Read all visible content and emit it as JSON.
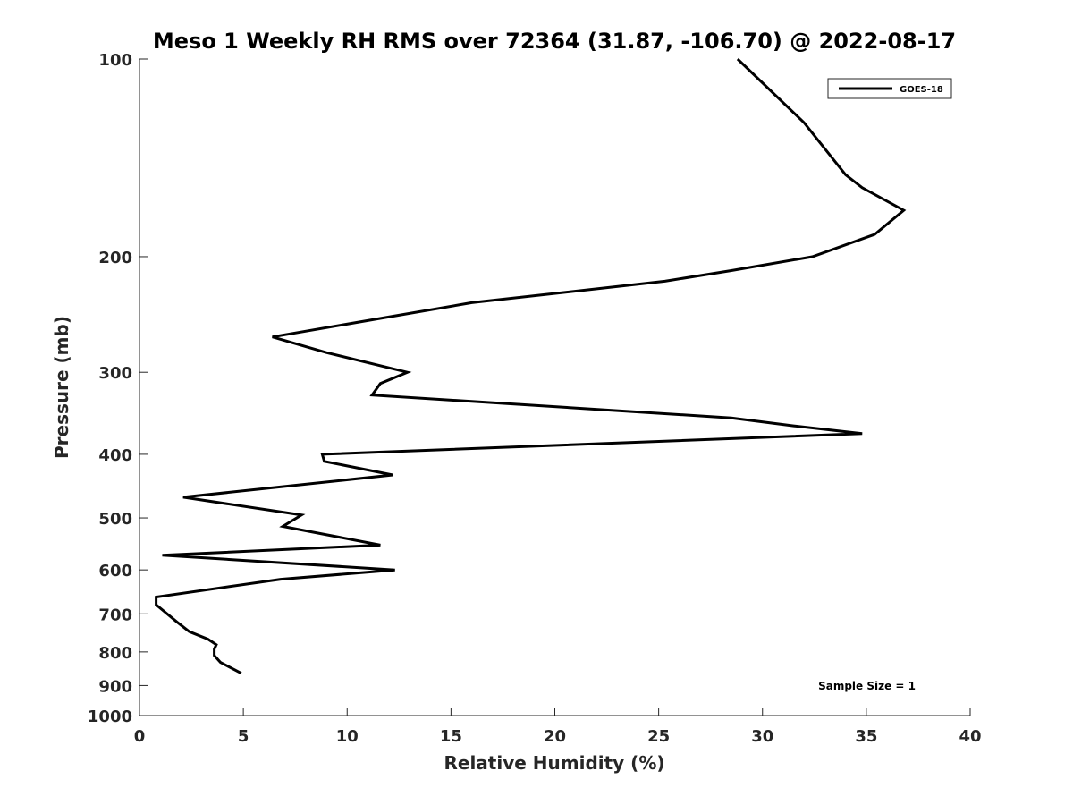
{
  "chart_data": {
    "type": "line",
    "title": "Meso 1 Weekly RH RMS over 72364 (31.87, -106.70) @ 2022-08-17",
    "xlabel": "Relative Humidity (%)",
    "ylabel": "Pressure (mb)",
    "xlim": [
      0,
      40
    ],
    "ylim": [
      100,
      1000
    ],
    "y_scale": "log",
    "y_reversed": true,
    "grid": false,
    "legend_position": "top-right",
    "x_ticks": [
      0,
      5,
      10,
      15,
      20,
      25,
      30,
      35,
      40
    ],
    "y_ticks": [
      100,
      200,
      300,
      400,
      500,
      600,
      700,
      800,
      900,
      1000
    ],
    "annotation": "Sample Size = 1",
    "series": [
      {
        "name": "GOES-18",
        "color": "#000000",
        "points": [
          {
            "x": 28.8,
            "p": 100
          },
          {
            "x": 32.0,
            "p": 125
          },
          {
            "x": 34.0,
            "p": 150
          },
          {
            "x": 34.8,
            "p": 157
          },
          {
            "x": 36.8,
            "p": 170
          },
          {
            "x": 35.4,
            "p": 185
          },
          {
            "x": 32.4,
            "p": 200
          },
          {
            "x": 28.5,
            "p": 210
          },
          {
            "x": 25.3,
            "p": 218
          },
          {
            "x": 16.0,
            "p": 235
          },
          {
            "x": 6.4,
            "p": 265
          },
          {
            "x": 9.0,
            "p": 280
          },
          {
            "x": 12.9,
            "p": 300
          },
          {
            "x": 11.6,
            "p": 312
          },
          {
            "x": 11.2,
            "p": 325
          },
          {
            "x": 28.5,
            "p": 352
          },
          {
            "x": 31.5,
            "p": 362
          },
          {
            "x": 34.8,
            "p": 372
          },
          {
            "x": 8.8,
            "p": 400
          },
          {
            "x": 8.9,
            "p": 410
          },
          {
            "x": 12.2,
            "p": 430
          },
          {
            "x": 2.1,
            "p": 465
          },
          {
            "x": 7.8,
            "p": 495
          },
          {
            "x": 6.9,
            "p": 515
          },
          {
            "x": 11.6,
            "p": 550
          },
          {
            "x": 1.1,
            "p": 570
          },
          {
            "x": 12.3,
            "p": 600
          },
          {
            "x": 6.8,
            "p": 620
          },
          {
            "x": 0.8,
            "p": 660
          },
          {
            "x": 0.8,
            "p": 678
          },
          {
            "x": 1.8,
            "p": 720
          },
          {
            "x": 2.4,
            "p": 745
          },
          {
            "x": 3.3,
            "p": 765
          },
          {
            "x": 3.7,
            "p": 780
          },
          {
            "x": 3.6,
            "p": 792
          },
          {
            "x": 3.6,
            "p": 810
          },
          {
            "x": 3.9,
            "p": 830
          },
          {
            "x": 4.9,
            "p": 862
          }
        ]
      }
    ]
  }
}
